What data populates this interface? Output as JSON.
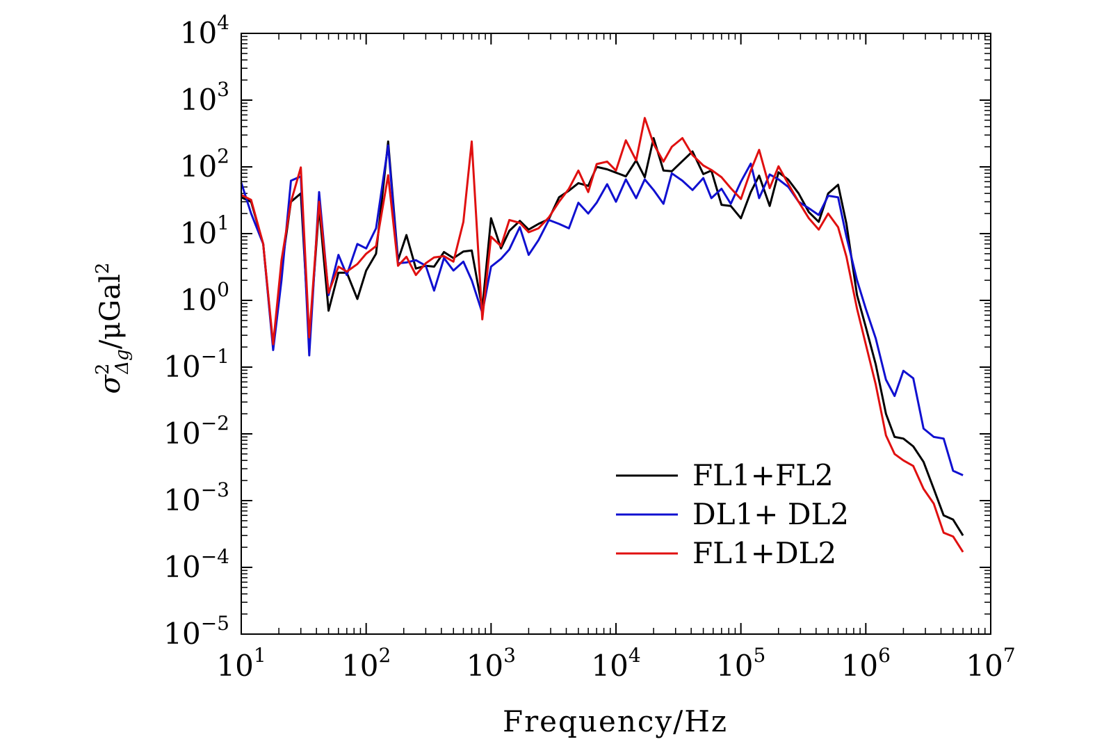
{
  "chart_data": {
    "type": "line",
    "xscale": "log",
    "yscale": "log",
    "xlabel": "Frequency/Hz",
    "ylabel": "σ²Δg/μGal²",
    "ylabel_parts": {
      "sym": "σ",
      "sup": "2",
      "sub": "Δg",
      "unit": "/μGal",
      "unit_sup": "2"
    },
    "xlim": [
      10,
      10000000
    ],
    "ylim": [
      1e-05,
      10000
    ],
    "xticks": [
      {
        "base": "10",
        "exp": "1",
        "value": 10
      },
      {
        "base": "10",
        "exp": "2",
        "value": 100
      },
      {
        "base": "10",
        "exp": "3",
        "value": 1000
      },
      {
        "base": "10",
        "exp": "4",
        "value": 10000
      },
      {
        "base": "10",
        "exp": "5",
        "value": 100000
      },
      {
        "base": "10",
        "exp": "6",
        "value": 1000000
      },
      {
        "base": "10",
        "exp": "7",
        "value": 10000000
      }
    ],
    "yticks": [
      {
        "base": "10",
        "exp": "−5",
        "value": 1e-05
      },
      {
        "base": "10",
        "exp": "−4",
        "value": 0.0001
      },
      {
        "base": "10",
        "exp": "−3",
        "value": 0.001
      },
      {
        "base": "10",
        "exp": "−2",
        "value": 0.01
      },
      {
        "base": "10",
        "exp": "−1",
        "value": 0.1
      },
      {
        "base": "10",
        "exp": "0",
        "value": 1
      },
      {
        "base": "10",
        "exp": "1",
        "value": 10
      },
      {
        "base": "10",
        "exp": "2",
        "value": 100
      },
      {
        "base": "10",
        "exp": "3",
        "value": 1000
      },
      {
        "base": "10",
        "exp": "4",
        "value": 10000
      }
    ],
    "grid": false,
    "legend_position": "bottom-right",
    "series": [
      {
        "name": "FL1+FL2",
        "color": "#000000",
        "points": [
          [
            10,
            35
          ],
          [
            12,
            30
          ],
          [
            15,
            7
          ],
          [
            18,
            0.2
          ],
          [
            21,
            3
          ],
          [
            25,
            30
          ],
          [
            30,
            40
          ],
          [
            35,
            0.25
          ],
          [
            42,
            25
          ],
          [
            50,
            0.7
          ],
          [
            60,
            2.6
          ],
          [
            70,
            2.6
          ],
          [
            85,
            1.05
          ],
          [
            100,
            2.8
          ],
          [
            120,
            5
          ],
          [
            150,
            240
          ],
          [
            180,
            4
          ],
          [
            210,
            9.5
          ],
          [
            250,
            3
          ],
          [
            300,
            3.3
          ],
          [
            350,
            3.2
          ],
          [
            420,
            5.3
          ],
          [
            500,
            4.3
          ],
          [
            600,
            5.4
          ],
          [
            700,
            5.6
          ],
          [
            850,
            0.75
          ],
          [
            1000,
            17
          ],
          [
            1200,
            6
          ],
          [
            1400,
            11
          ],
          [
            1700,
            15.5
          ],
          [
            2000,
            11.5
          ],
          [
            2400,
            14
          ],
          [
            2900,
            16.5
          ],
          [
            3500,
            35
          ],
          [
            4200,
            44
          ],
          [
            5000,
            57
          ],
          [
            6000,
            52
          ],
          [
            7000,
            100
          ],
          [
            8500,
            92
          ],
          [
            10000,
            82
          ],
          [
            12000,
            72
          ],
          [
            14500,
            125
          ],
          [
            17000,
            70
          ],
          [
            20000,
            270
          ],
          [
            24000,
            88
          ],
          [
            28000,
            86
          ],
          [
            34000,
            122
          ],
          [
            41000,
            170
          ],
          [
            50000,
            78
          ],
          [
            58000,
            88
          ],
          [
            70000,
            27
          ],
          [
            83000,
            26
          ],
          [
            100000,
            17
          ],
          [
            120000,
            42
          ],
          [
            140000,
            74
          ],
          [
            170000,
            26
          ],
          [
            200000,
            83
          ],
          [
            240000,
            64
          ],
          [
            290000,
            40
          ],
          [
            350000,
            21
          ],
          [
            420000,
            15
          ],
          [
            500000,
            40
          ],
          [
            600000,
            54
          ],
          [
            700000,
            14
          ],
          [
            850000,
            1.2
          ],
          [
            1000000,
            0.4
          ],
          [
            1200000,
            0.11
          ],
          [
            1450000,
            0.02
          ],
          [
            1700000,
            0.009
          ],
          [
            2000000,
            0.0085
          ],
          [
            2400000,
            0.0065
          ],
          [
            2900000,
            0.0038
          ],
          [
            3500000,
            0.0015
          ],
          [
            4200000,
            0.0006
          ],
          [
            5000000,
            0.00052
          ],
          [
            6000000,
            0.0003
          ]
        ]
      },
      {
        "name": "DL1+ DL2",
        "color": "#1010d0",
        "points": [
          [
            10,
            58
          ],
          [
            12,
            20
          ],
          [
            15,
            7
          ],
          [
            18,
            0.18
          ],
          [
            21,
            2
          ],
          [
            25,
            62
          ],
          [
            30,
            72
          ],
          [
            35,
            0.15
          ],
          [
            42,
            42
          ],
          [
            50,
            1.2
          ],
          [
            60,
            4.8
          ],
          [
            70,
            2.4
          ],
          [
            85,
            7
          ],
          [
            100,
            6
          ],
          [
            120,
            12
          ],
          [
            150,
            210
          ],
          [
            180,
            3.6
          ],
          [
            210,
            3.7
          ],
          [
            250,
            4
          ],
          [
            300,
            3.3
          ],
          [
            350,
            1.4
          ],
          [
            420,
            4.3
          ],
          [
            500,
            2.8
          ],
          [
            600,
            3.8
          ],
          [
            700,
            2
          ],
          [
            850,
            0.65
          ],
          [
            1000,
            3.2
          ],
          [
            1200,
            4.2
          ],
          [
            1400,
            5.8
          ],
          [
            1700,
            12.5
          ],
          [
            2000,
            4.8
          ],
          [
            2400,
            8
          ],
          [
            2900,
            16
          ],
          [
            3500,
            14
          ],
          [
            4200,
            12
          ],
          [
            5000,
            29
          ],
          [
            6000,
            20
          ],
          [
            7000,
            29
          ],
          [
            8500,
            55
          ],
          [
            10000,
            30
          ],
          [
            12000,
            65
          ],
          [
            14500,
            34
          ],
          [
            17000,
            65
          ],
          [
            20000,
            45
          ],
          [
            24000,
            28
          ],
          [
            28000,
            80
          ],
          [
            34000,
            62
          ],
          [
            41000,
            45
          ],
          [
            50000,
            68
          ],
          [
            58000,
            34
          ],
          [
            70000,
            47
          ],
          [
            83000,
            28
          ],
          [
            100000,
            60
          ],
          [
            120000,
            112
          ],
          [
            140000,
            34
          ],
          [
            170000,
            77
          ],
          [
            200000,
            65
          ],
          [
            240000,
            50
          ],
          [
            290000,
            30
          ],
          [
            350000,
            24
          ],
          [
            420000,
            19
          ],
          [
            500000,
            37
          ],
          [
            600000,
            35
          ],
          [
            700000,
            9
          ],
          [
            850000,
            2
          ],
          [
            1000000,
            0.75
          ],
          [
            1200000,
            0.27
          ],
          [
            1450000,
            0.065
          ],
          [
            1700000,
            0.037
          ],
          [
            2000000,
            0.088
          ],
          [
            2400000,
            0.068
          ],
          [
            2900000,
            0.012
          ],
          [
            3500000,
            0.009
          ],
          [
            4200000,
            0.0085
          ],
          [
            5000000,
            0.0028
          ],
          [
            6000000,
            0.0024
          ]
        ]
      },
      {
        "name": "FL1+DL2",
        "color": "#e01010",
        "points": [
          [
            10,
            38
          ],
          [
            12,
            32
          ],
          [
            15,
            7
          ],
          [
            18,
            0.22
          ],
          [
            21,
            4
          ],
          [
            25,
            30
          ],
          [
            30,
            98
          ],
          [
            35,
            0.28
          ],
          [
            42,
            30
          ],
          [
            50,
            1.3
          ],
          [
            60,
            3.2
          ],
          [
            70,
            2.7
          ],
          [
            85,
            3.5
          ],
          [
            100,
            5
          ],
          [
            120,
            6.5
          ],
          [
            150,
            75
          ],
          [
            180,
            3.3
          ],
          [
            210,
            4.5
          ],
          [
            250,
            2.4
          ],
          [
            300,
            3.6
          ],
          [
            350,
            4.4
          ],
          [
            420,
            4.6
          ],
          [
            500,
            3.8
          ],
          [
            600,
            15
          ],
          [
            700,
            240
          ],
          [
            850,
            0.52
          ],
          [
            1000,
            9
          ],
          [
            1200,
            6.5
          ],
          [
            1400,
            16
          ],
          [
            1700,
            14.5
          ],
          [
            2000,
            10.5
          ],
          [
            2400,
            12
          ],
          [
            2900,
            17.5
          ],
          [
            3500,
            30
          ],
          [
            4200,
            47
          ],
          [
            5000,
            88
          ],
          [
            6000,
            42
          ],
          [
            7000,
            110
          ],
          [
            8500,
            120
          ],
          [
            10000,
            88
          ],
          [
            12000,
            250
          ],
          [
            14500,
            125
          ],
          [
            17000,
            540
          ],
          [
            20000,
            220
          ],
          [
            24000,
            120
          ],
          [
            28000,
            200
          ],
          [
            34000,
            270
          ],
          [
            41000,
            150
          ],
          [
            50000,
            105
          ],
          [
            58000,
            90
          ],
          [
            70000,
            70
          ],
          [
            83000,
            48
          ],
          [
            100000,
            33
          ],
          [
            120000,
            88
          ],
          [
            140000,
            180
          ],
          [
            170000,
            48
          ],
          [
            200000,
            102
          ],
          [
            240000,
            55
          ],
          [
            290000,
            30
          ],
          [
            350000,
            17
          ],
          [
            420000,
            11.5
          ],
          [
            500000,
            20
          ],
          [
            600000,
            12.5
          ],
          [
            700000,
            4.5
          ],
          [
            850000,
            0.75
          ],
          [
            1000000,
            0.22
          ],
          [
            1200000,
            0.055
          ],
          [
            1450000,
            0.0095
          ],
          [
            1700000,
            0.005
          ],
          [
            2000000,
            0.004
          ],
          [
            2400000,
            0.0033
          ],
          [
            2900000,
            0.0015
          ],
          [
            3500000,
            0.0009
          ],
          [
            4200000,
            0.00033
          ],
          [
            5000000,
            0.00029
          ],
          [
            6000000,
            0.00017
          ]
        ]
      }
    ]
  }
}
